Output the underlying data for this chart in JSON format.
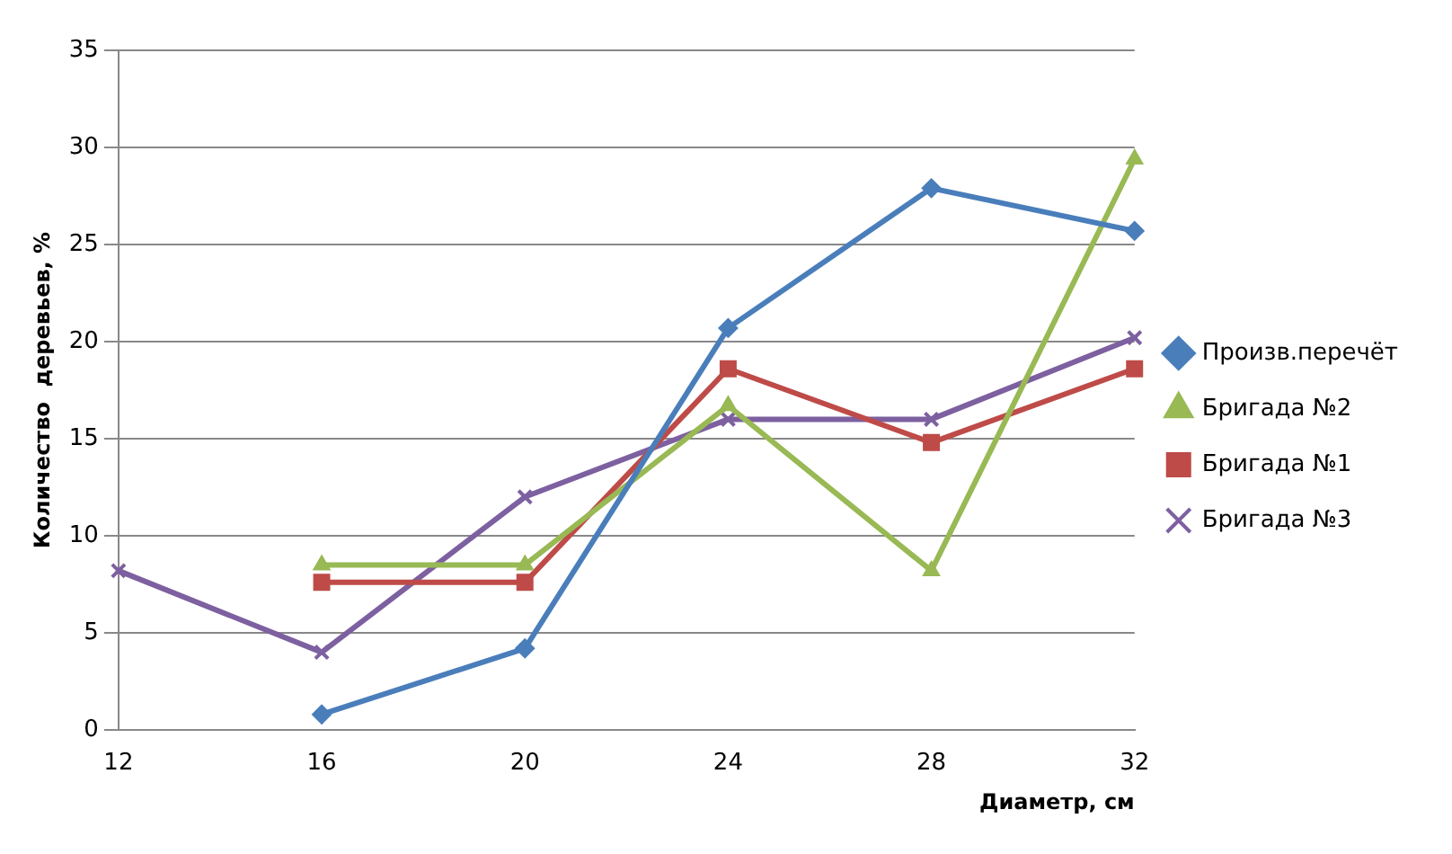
{
  "chart_data": {
    "type": "line",
    "xlabel": "Диаметр, см",
    "ylabel": "Количество  деревьев, %",
    "categories": [
      "12",
      "16",
      "20",
      "24",
      "28",
      "32"
    ],
    "series": [
      {
        "name": "Произв.перечёт",
        "color": "#4a7ebb",
        "marker": "diamond",
        "values": [
          null,
          0.8,
          4.2,
          20.7,
          27.9,
          25.7
        ]
      },
      {
        "name": "Бригада №2",
        "color": "#98b954",
        "marker": "triangle",
        "values": [
          null,
          8.5,
          8.5,
          16.7,
          8.2,
          29.4
        ]
      },
      {
        "name": "Бригада №1",
        "color": "#be4b48",
        "marker": "square",
        "values": [
          null,
          7.6,
          7.6,
          18.6,
          14.8,
          18.6
        ]
      },
      {
        "name": "Бригада №3",
        "color": "#7d60a0",
        "marker": "cross",
        "values": [
          8.2,
          4.0,
          12.0,
          16.0,
          16.0,
          20.2
        ]
      }
    ],
    "ylim": [
      0,
      35
    ],
    "yticks": [
      0,
      5,
      10,
      15,
      20,
      25,
      30,
      35
    ],
    "grid": "y",
    "legend": "right",
    "line_style": "solid"
  }
}
